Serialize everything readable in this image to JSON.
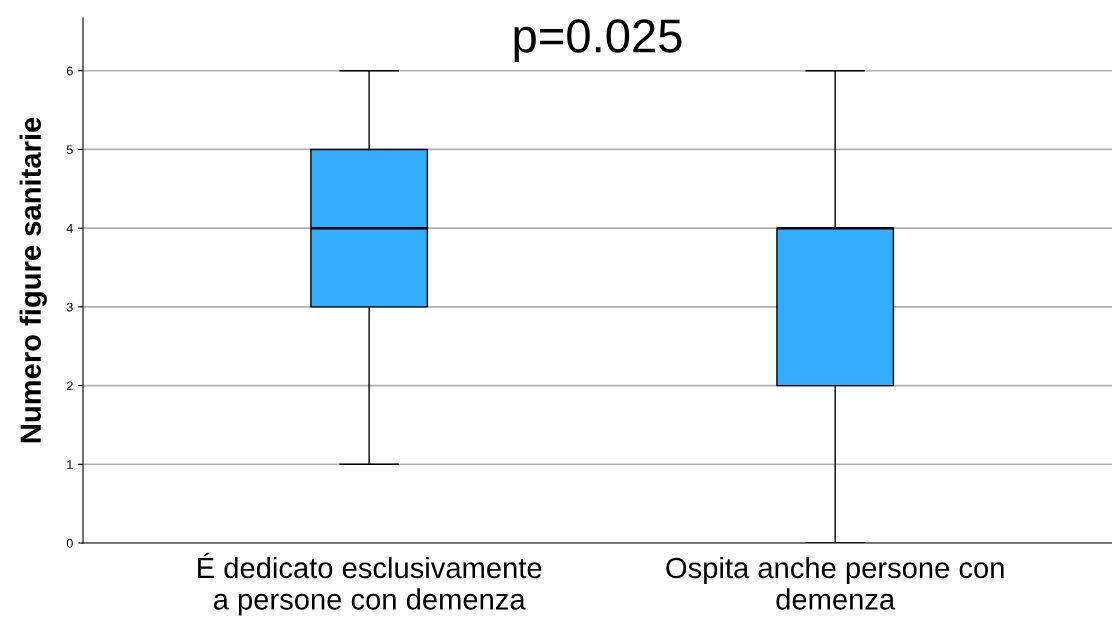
{
  "chart_data": {
    "type": "box",
    "title": "p=0.025",
    "ylabel": "Numero figure sanitarie",
    "categories": [
      "É dedicato esclusivamente\na persone con demenza",
      "Ospita anche persone con\ndemenza"
    ],
    "boxes": [
      {
        "low": 1,
        "q1": 3,
        "median": 4,
        "q3": 5,
        "high": 6
      },
      {
        "low": 0,
        "q1": 2,
        "median": 4,
        "q3": 4,
        "high": 6
      }
    ],
    "color": "#33adff",
    "ylim": [
      0,
      6.67
    ],
    "yticks": [
      0,
      1,
      2,
      3,
      4,
      5,
      6
    ],
    "grid": "y",
    "legend": false
  }
}
